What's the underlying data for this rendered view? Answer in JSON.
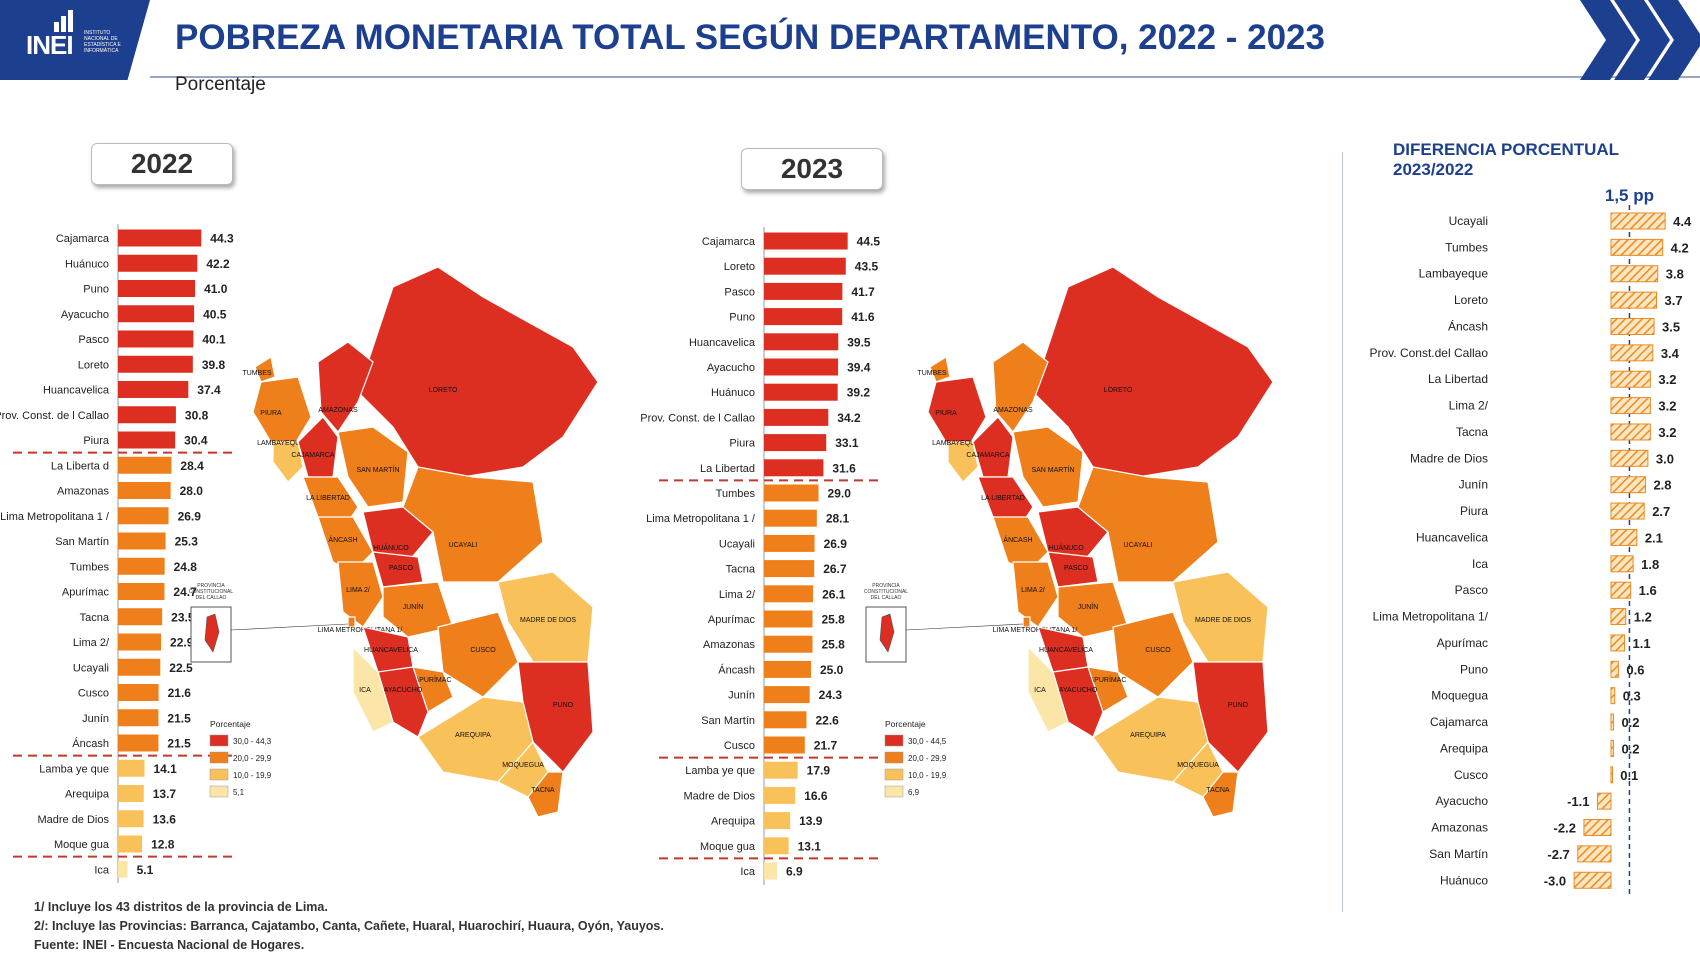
{
  "header": {
    "logo_text": "INEI",
    "logo_subtext": "INSTITUTO NACIONAL DE ESTADÍSTICA E INFORMÁTICA",
    "title": "POBREZA MONETARIA TOTAL SEGÚN DEPARTAMENTO, 2022 - 2023",
    "subtitle": "Porcentaje"
  },
  "year_labels": {
    "left": "2022",
    "right": "2023"
  },
  "colors": {
    "dark_red": "#dd2e22",
    "orange": "#ee7f1a",
    "light_orange": "#f9c15a",
    "pale": "#fbe6a8",
    "diff_fill": "#f5a142",
    "navy": "#1d3f8f"
  },
  "map_legend": {
    "title": "Porcentaje",
    "ranges_2022": [
      "30,0 - 44,3",
      "20,0 - 29,9",
      "10,0 - 19,9",
      "5,1"
    ],
    "ranges_2023": [
      "30,0 - 44,5",
      "20,0 - 29,9",
      "10,0 - 19,9",
      "6,9"
    ]
  },
  "map_labels": [
    "LORETO",
    "TUMBES",
    "PIURA",
    "AMAZONAS",
    "LAMBAYEQUE",
    "CAJAMARCA",
    "SAN MARTÍN",
    "LA LIBERTAD",
    "ÁNCASH",
    "HUÁNUCO",
    "UCAYALI",
    "PASCO",
    "LIMA 2/",
    "JUNÍN",
    "MADRE DE DIOS",
    "LIMA METROPOLITANA 1/",
    "HUANCAVELICA",
    "CUSCO",
    "APURÍMAC",
    "AYACUCHO",
    "ICA",
    "PUNO",
    "AREQUIPA",
    "MOQUEGUA",
    "TACNA"
  ],
  "callao_label": "PROVINCIA CONSTITUCIONAL DEL CALLAO",
  "chart_data": [
    {
      "type": "bar",
      "orientation": "horizontal",
      "title": "2022",
      "categories": [
        "Cajamarca",
        "Huánuco",
        "Puno",
        "Ayacucho",
        "Pasco",
        "Loreto",
        "Huancavelica",
        "Prov. Const. de l Callao",
        "Piura",
        "La Liberta d",
        "Amazonas",
        "Lima Metropolitana 1 /",
        "San Martín",
        "Tumbes",
        "Apurímac",
        "Tacna",
        "Lima 2/",
        "Ucayali",
        "Cusco",
        "Junín",
        "Áncash",
        "Lamba ye que",
        "Arequipa",
        "Madre de Dios",
        "Moque gua",
        "Ica"
      ],
      "values": [
        44.3,
        42.2,
        41.0,
        40.5,
        40.1,
        39.8,
        37.4,
        30.8,
        30.4,
        28.4,
        28.0,
        26.9,
        25.3,
        24.8,
        24.7,
        23.5,
        22.9,
        22.5,
        21.6,
        21.5,
        21.5,
        14.1,
        13.7,
        13.6,
        12.8,
        5.1
      ],
      "value_labels": [
        "44.3",
        "42.2",
        "41.0",
        "40.5",
        "40.1",
        "39.8",
        "37.4",
        "30.8",
        "30.4",
        "28.4",
        "28.0",
        "26.9",
        "25.3",
        "24.8",
        "24.7",
        "23.5",
        "22.9",
        "22.5",
        "21.6",
        "21.5",
        "21.5",
        "14.1",
        "13.7",
        "13.6",
        "12.8",
        "5.1"
      ]
    },
    {
      "type": "bar",
      "orientation": "horizontal",
      "title": "2023",
      "categories": [
        "Cajamarca",
        "Loreto",
        "Pasco",
        "Puno",
        "Huancavelica",
        "Ayacucho",
        "Huánuco",
        "Prov. Const. de l Callao",
        "Piura",
        "La Libertad",
        "Tumbes",
        "Lima Metropolitana 1 /",
        "Ucayali",
        "Tacna",
        "Lima 2/",
        "Apurímac",
        "Amazonas",
        "Áncash",
        "Junín",
        "San Martín",
        "Cusco",
        "Lamba ye que",
        "Madre de Dios",
        "Arequipa",
        "Moque gua",
        "Ica"
      ],
      "values": [
        44.5,
        43.5,
        41.7,
        41.6,
        39.5,
        39.4,
        39.2,
        34.2,
        33.1,
        31.6,
        29.0,
        28.1,
        26.9,
        26.7,
        26.1,
        25.8,
        25.8,
        25.0,
        24.3,
        22.6,
        21.7,
        17.9,
        16.6,
        13.9,
        13.1,
        6.9
      ],
      "value_labels": [
        "44.5",
        "43.5",
        "41.7",
        "41.6",
        "39.5",
        "39.4",
        "39.2",
        "34.2",
        "33.1",
        "31.6",
        "29.0",
        "28.1",
        "26.9",
        "26.7",
        "26.1",
        "25.8",
        "25.8",
        "25.0",
        "24.3",
        "22.6",
        "21.7",
        "17.9",
        "16.6",
        "13.9",
        "13.1",
        "6.9"
      ]
    },
    {
      "type": "bar",
      "orientation": "horizontal",
      "title": "DIFERENCIA PORCENTUAL 2023/2022",
      "reference_label": "1,5 pp",
      "reference_value": 1.5,
      "categories": [
        "Ucayali",
        "Tumbes",
        "Lambayeque",
        "Loreto",
        "Áncash",
        "Prov. Const.del Callao",
        "La Libertad",
        "Lima 2/",
        "Tacna",
        "Madre de Dios",
        "Junín",
        "Piura",
        "Huancavelica",
        "Ica",
        "Pasco",
        "Lima Metropolitana 1/",
        "Apurímac",
        "Puno",
        "Moquegua",
        "Cajamarca",
        "Arequipa",
        "Cusco",
        "Ayacucho",
        "Amazonas",
        "San Martín",
        "Huánuco"
      ],
      "values": [
        4.4,
        4.2,
        3.8,
        3.7,
        3.5,
        3.4,
        3.2,
        3.2,
        3.2,
        3.0,
        2.8,
        2.7,
        2.1,
        1.8,
        1.6,
        1.2,
        1.1,
        0.6,
        0.3,
        0.2,
        0.2,
        0.1,
        -1.1,
        -2.2,
        -2.7,
        -3.0
      ],
      "value_labels": [
        "4.4",
        "4.2",
        "3.8",
        "3.7",
        "3.5",
        "3.4",
        "3.2",
        "3.2",
        "3.2",
        "3.0",
        "2.8",
        "2.7",
        "2.1",
        "1.8",
        "1.6",
        "1.2",
        "1.1",
        "0.6",
        "0.3",
        "0.2",
        "0.2",
        "0.1",
        "-1.1",
        "-2.2",
        "-2.7",
        "-3.0"
      ]
    }
  ],
  "footnotes": {
    "note1": "1/ Incluye los 43 distritos de la provincia de Lima.",
    "note2": "2/: Incluye las Provincias: Barranca, Cajatambo, Canta, Cañete, Huaral, Huarochirí, Huaura, Oyón, Yauyos.",
    "source": "Fuente: INEI - Encuesta Nacional de Hogares."
  }
}
